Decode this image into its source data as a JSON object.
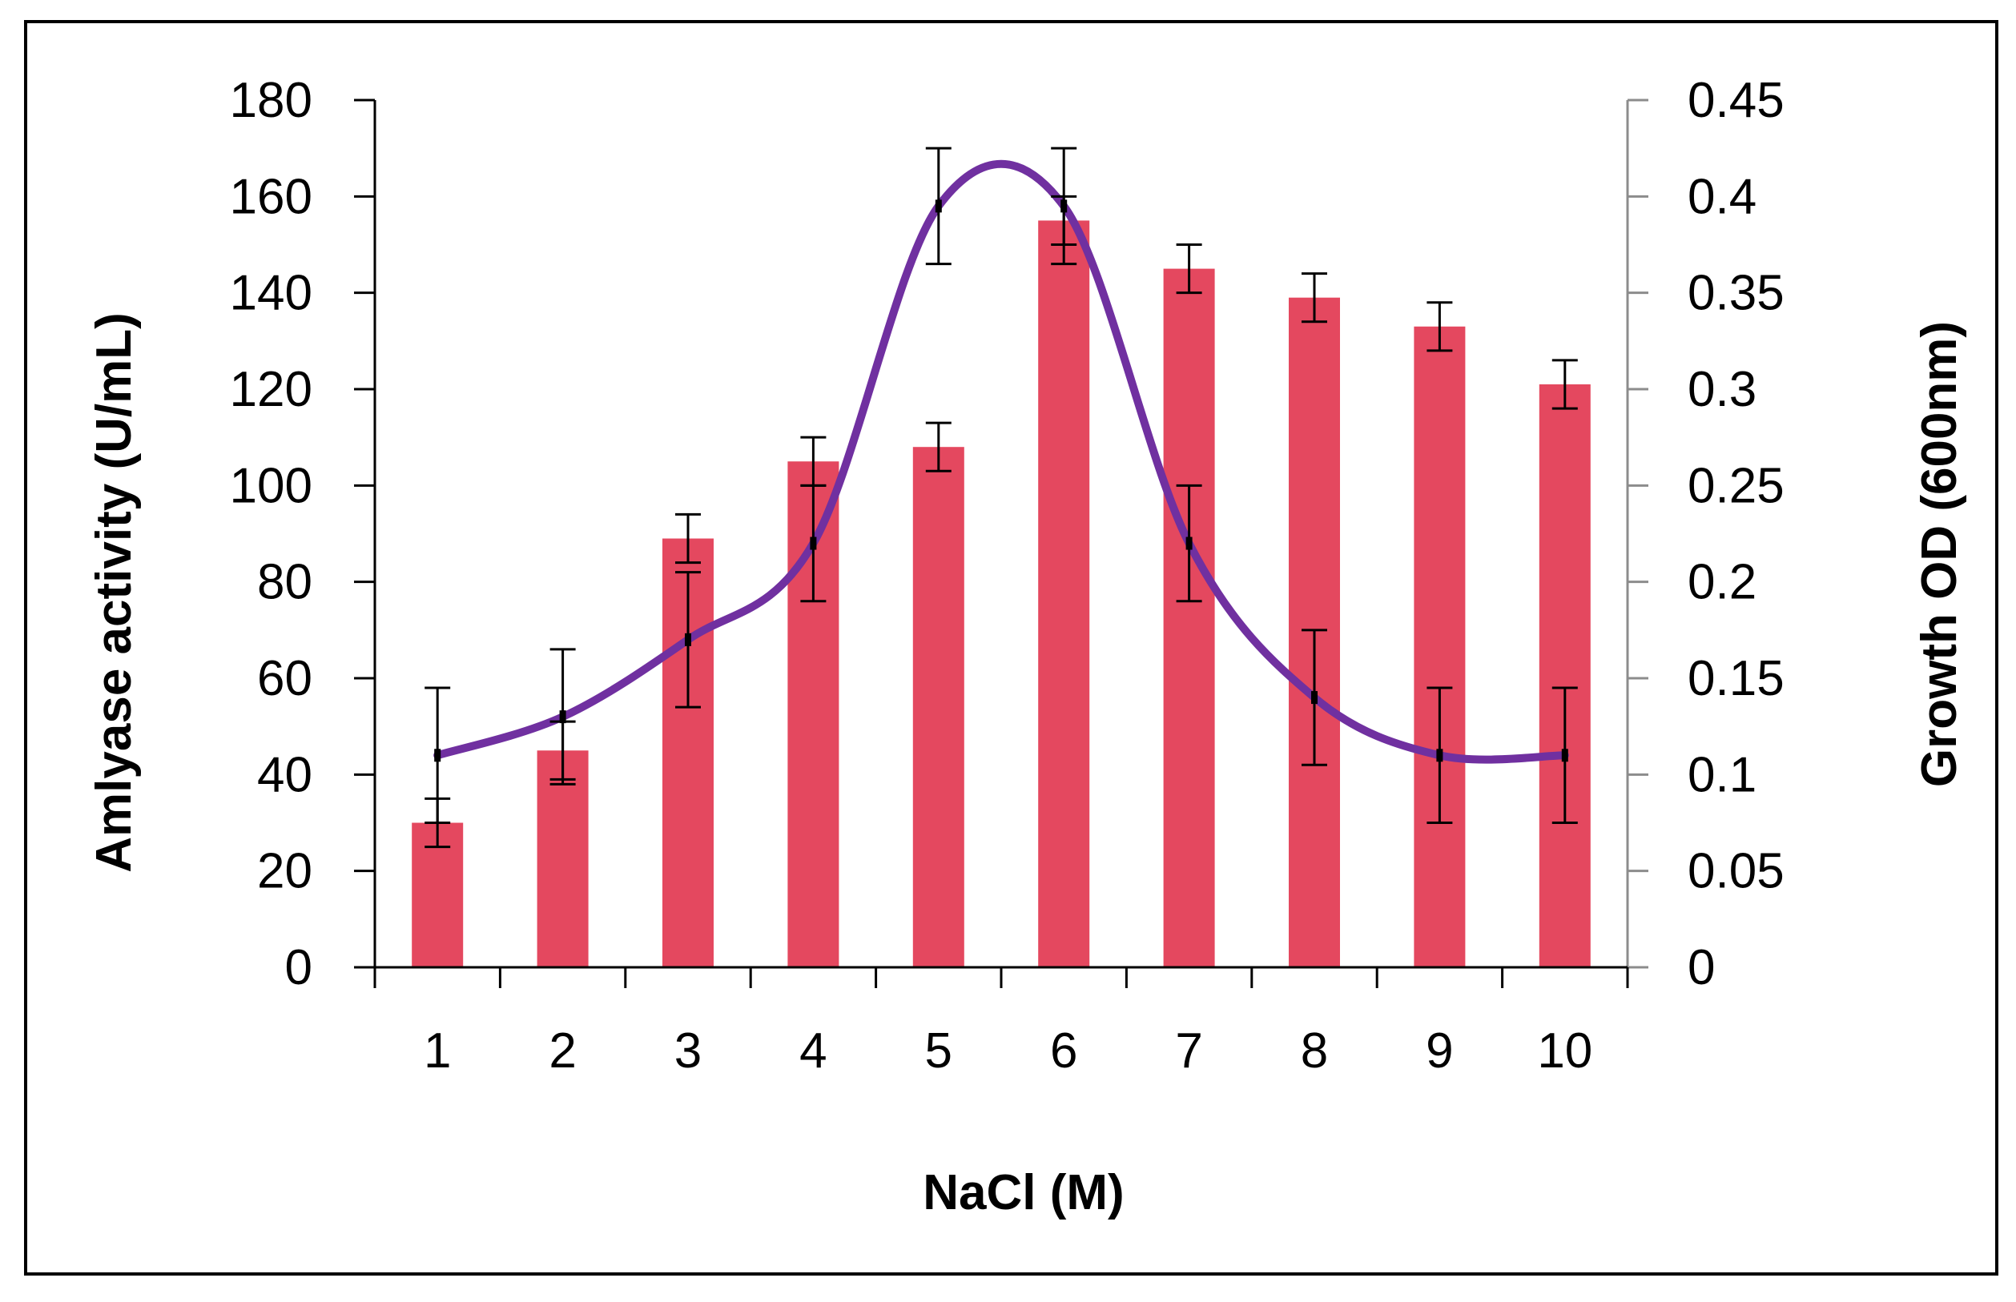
{
  "chart_data": {
    "type": "bar",
    "title": "",
    "xlabel": "NaCl (M)",
    "ylabel": "Amlyase activity (U/mL)",
    "y2label": "Growth OD (600nm)",
    "categories": [
      "1",
      "2",
      "3",
      "4",
      "5",
      "6",
      "7",
      "8",
      "9",
      "10"
    ],
    "ylim": [
      0,
      180
    ],
    "y2lim": [
      0,
      0.45
    ],
    "yticks": [
      "0",
      "20",
      "40",
      "60",
      "80",
      "100",
      "120",
      "140",
      "160",
      "180"
    ],
    "y2ticks": [
      "0",
      "0.05",
      "0.1",
      "0.15",
      "0.2",
      "0.25",
      "0.3",
      "0.35",
      "0.4",
      "0.45"
    ],
    "series": [
      {
        "name": "Amylase activity",
        "type": "bar",
        "axis": "left",
        "color": "#E4485F",
        "values": [
          30,
          45,
          89,
          105,
          108,
          155,
          145,
          139,
          133,
          121
        ],
        "errors": [
          5,
          6,
          5,
          5,
          5,
          5,
          5,
          5,
          5,
          5
        ]
      },
      {
        "name": "Growth OD",
        "type": "line",
        "axis": "right",
        "color": "#7030A0",
        "smooth": true,
        "values": [
          0.11,
          0.13,
          0.17,
          0.22,
          0.395,
          0.395,
          0.22,
          0.14,
          0.11,
          0.11
        ],
        "errors": [
          0.035,
          0.035,
          0.035,
          0.03,
          0.03,
          0.03,
          0.03,
          0.035,
          0.035,
          0.035
        ]
      }
    ],
    "grid": false,
    "legend": "none"
  }
}
